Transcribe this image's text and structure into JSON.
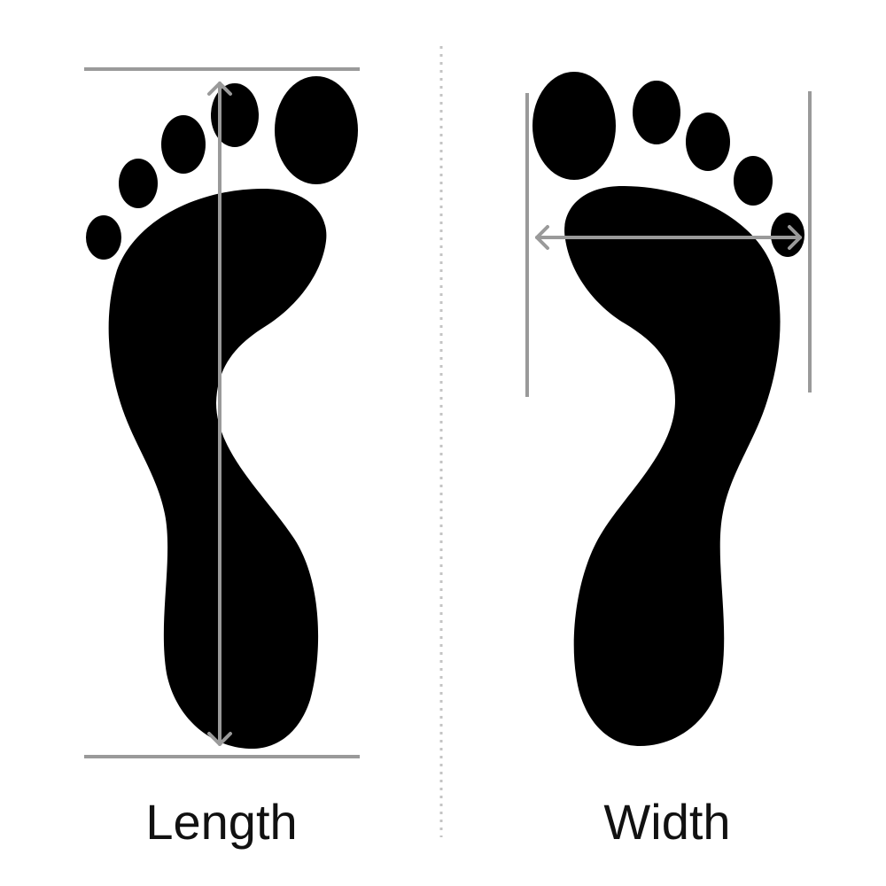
{
  "labels": {
    "length": "Length",
    "width": "Width"
  },
  "colors": {
    "foot": "#000000",
    "measure_line": "#9a9a9a",
    "divider": "#c4c4c4",
    "background": "#ffffff"
  }
}
